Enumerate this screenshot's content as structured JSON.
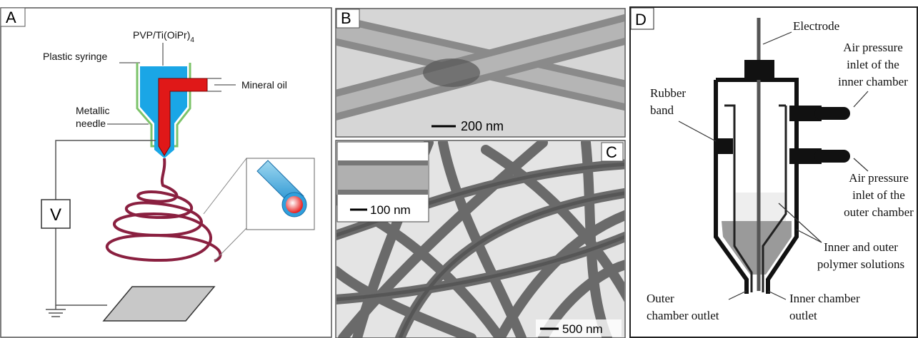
{
  "panel_a": {
    "label": "A",
    "formula": {
      "main": "PVP/Ti(OiPr)",
      "subscript": "4"
    },
    "plastic_syringe": "Plastic syringe",
    "mineral_oil": "Mineral oil",
    "metallic_needle": [
      "Metallic",
      "needle"
    ],
    "voltage": "V"
  },
  "panel_b": {
    "label": "B",
    "scale_bar": "200 nm"
  },
  "panel_c": {
    "label": "C",
    "inset_scale_bar": "100 nm",
    "scale_bar": "500 nm"
  },
  "panel_d": {
    "label": "D",
    "electrode": "Electrode",
    "inner_inlet": [
      "Air pressure",
      "inlet of the",
      "inner chamber"
    ],
    "rubber_band": [
      "Rubber",
      "band"
    ],
    "outer_inlet": [
      "Air pressure",
      "inlet of the",
      "outer chamber"
    ],
    "solutions": [
      "Inner and outer",
      "polymer solutions"
    ],
    "outer_outlet": [
      "Outer",
      "chamber outlet"
    ],
    "inner_outlet": [
      "Inner chamber",
      "outlet"
    ]
  }
}
